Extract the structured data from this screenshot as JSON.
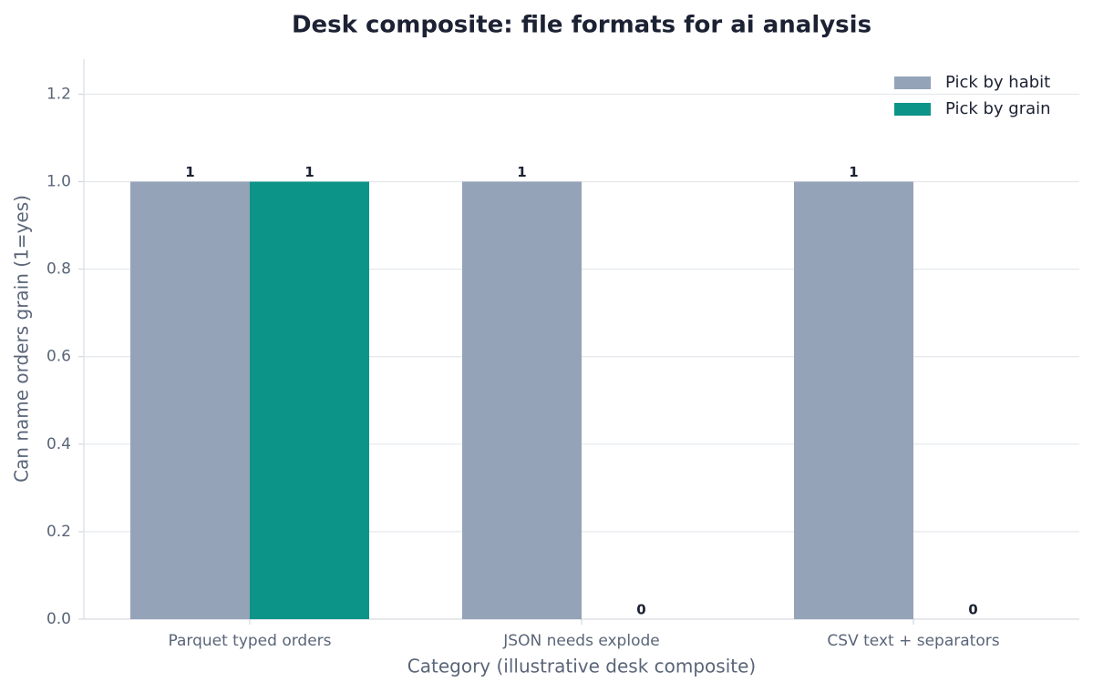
{
  "chart_data": {
    "type": "bar",
    "title": "Desk composite: file formats for ai analysis",
    "xlabel": "Category (illustrative desk composite)",
    "ylabel": "Can name orders grain (1=yes)",
    "categories": [
      "Parquet typed orders",
      "JSON needs explode",
      "CSV text + separators"
    ],
    "series": [
      {
        "name": "Pick by habit",
        "color": "#94a3b8",
        "values": [
          1,
          1,
          1
        ]
      },
      {
        "name": "Pick by grain",
        "color": "#0d9488",
        "values": [
          1,
          0,
          0
        ]
      }
    ],
    "ylim": [
      0,
      1.28
    ],
    "yticks": [
      {
        "value": 0,
        "label": "0.0"
      },
      0.2,
      0.4,
      0.6,
      0.8,
      {
        "value": 1,
        "label": "1.0"
      },
      1.2
    ],
    "grid": true,
    "legend": "upper right"
  }
}
